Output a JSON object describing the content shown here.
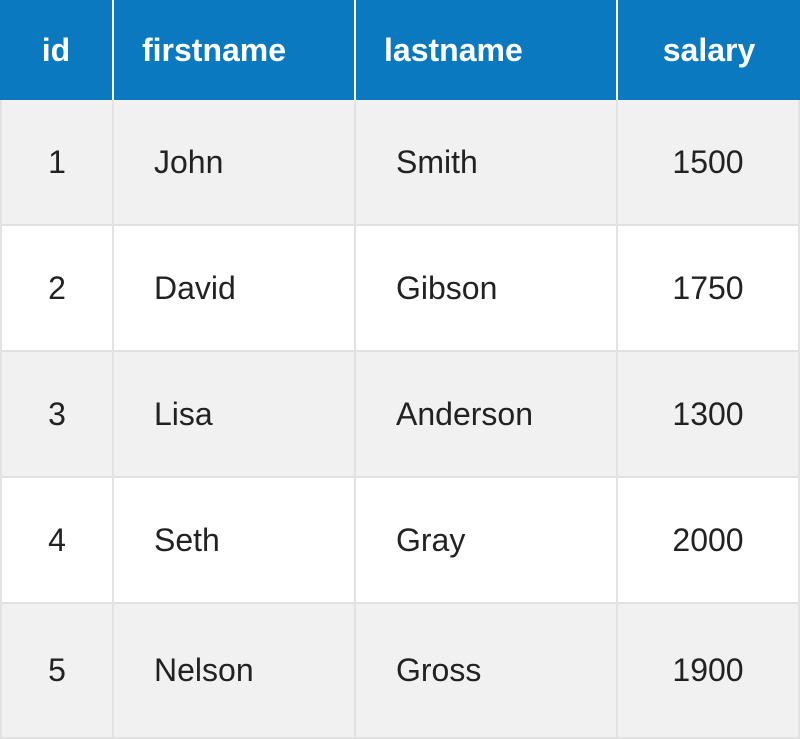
{
  "table": {
    "columns": [
      "id",
      "firstname",
      "lastname",
      "salary"
    ],
    "rows": [
      [
        "1",
        "John",
        "Smith",
        "1500"
      ],
      [
        "2",
        "David",
        "Gibson",
        "1750"
      ],
      [
        "3",
        "Lisa",
        "Anderson",
        "1300"
      ],
      [
        "4",
        "Seth",
        "Gray",
        "2000"
      ],
      [
        "5",
        "Nelson",
        "Gross",
        "1900"
      ]
    ]
  },
  "colors": {
    "header_background": "#0a79c0",
    "header_text": "#ffffff",
    "row_odd": "#f1f1f1",
    "row_even": "#ffffff",
    "grid_line": "#e2e2e2"
  }
}
